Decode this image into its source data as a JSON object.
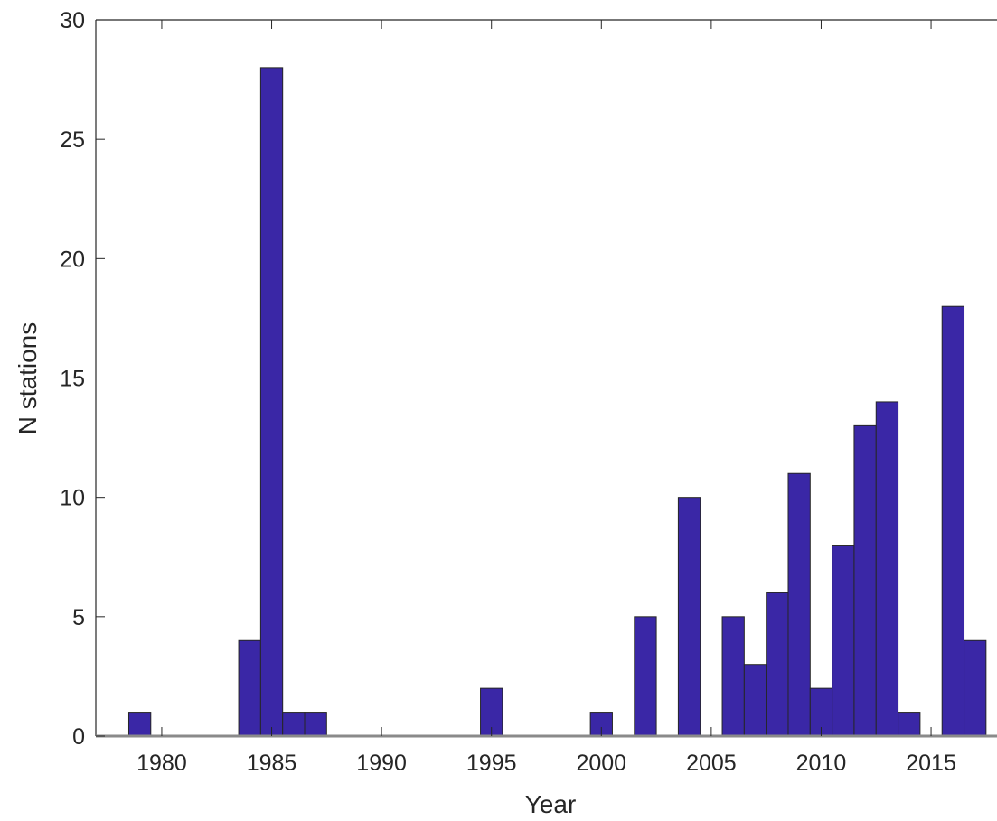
{
  "chart_data": {
    "type": "bar",
    "title": "",
    "xlabel": "Year",
    "ylabel": "N stations",
    "xlim": [
      1977,
      2018
    ],
    "ylim": [
      0,
      30
    ],
    "bin_width": 1,
    "x_ticks": [
      1980,
      1985,
      1990,
      1995,
      2000,
      2005,
      2010,
      2015
    ],
    "y_ticks": [
      0,
      5,
      10,
      15,
      20,
      25,
      30
    ],
    "grid": false,
    "legend": "none",
    "bar_color": "#3a27a6",
    "edge_color": "#262626",
    "series": [
      {
        "x": [
          1979,
          1984,
          1985,
          1986,
          1987,
          1995,
          2000,
          2002,
          2004,
          2006,
          2007,
          2008,
          2009,
          2010,
          2011,
          2012,
          2013,
          2014,
          2016,
          2017
        ],
        "values": [
          1,
          4,
          28,
          1,
          1,
          2,
          1,
          5,
          10,
          5,
          3,
          6,
          11,
          2,
          8,
          13,
          14,
          1,
          18,
          4
        ]
      }
    ]
  }
}
